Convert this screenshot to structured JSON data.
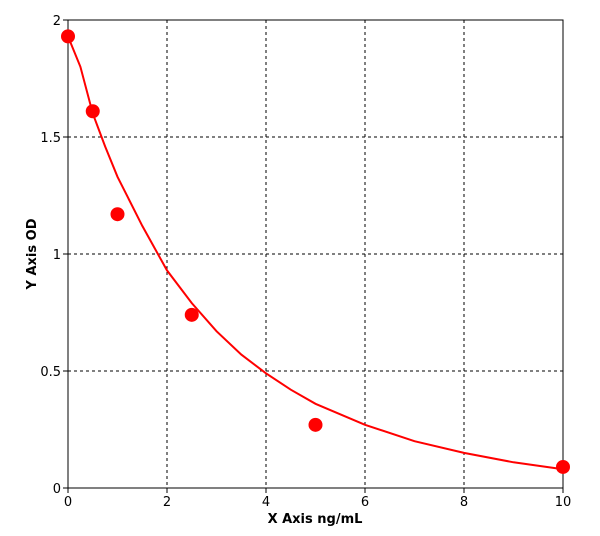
{
  "chart_data": {
    "type": "scatter",
    "title": "",
    "xlabel": "X Axis ng/mL",
    "ylabel": "Y Axis OD",
    "xlim": [
      0,
      10
    ],
    "ylim": [
      0,
      2
    ],
    "grid": true,
    "x_ticks": [
      "0",
      "2",
      "4",
      "6",
      "8",
      "10"
    ],
    "y_ticks": [
      "0",
      "0.5",
      "1",
      "1.5",
      "2"
    ],
    "points": [
      {
        "x": 0,
        "y": 1.93
      },
      {
        "x": 0.5,
        "y": 1.61
      },
      {
        "x": 1,
        "y": 1.17
      },
      {
        "x": 2.5,
        "y": 0.74
      },
      {
        "x": 5,
        "y": 0.27
      },
      {
        "x": 10,
        "y": 0.09
      }
    ],
    "fit_curve": [
      {
        "x": 0,
        "y": 1.93
      },
      {
        "x": 0.25,
        "y": 1.8
      },
      {
        "x": 0.5,
        "y": 1.6
      },
      {
        "x": 0.75,
        "y": 1.46
      },
      {
        "x": 1,
        "y": 1.33
      },
      {
        "x": 1.5,
        "y": 1.12
      },
      {
        "x": 2,
        "y": 0.93
      },
      {
        "x": 2.5,
        "y": 0.79
      },
      {
        "x": 3,
        "y": 0.67
      },
      {
        "x": 3.5,
        "y": 0.57
      },
      {
        "x": 4,
        "y": 0.49
      },
      {
        "x": 4.5,
        "y": 0.42
      },
      {
        "x": 5,
        "y": 0.36
      },
      {
        "x": 6,
        "y": 0.27
      },
      {
        "x": 7,
        "y": 0.2
      },
      {
        "x": 8,
        "y": 0.15
      },
      {
        "x": 9,
        "y": 0.11
      },
      {
        "x": 10,
        "y": 0.08
      }
    ],
    "colors": {
      "series": "#ff0000",
      "grid": "#000000",
      "axis": "#000000",
      "background": "#ffffff"
    }
  }
}
